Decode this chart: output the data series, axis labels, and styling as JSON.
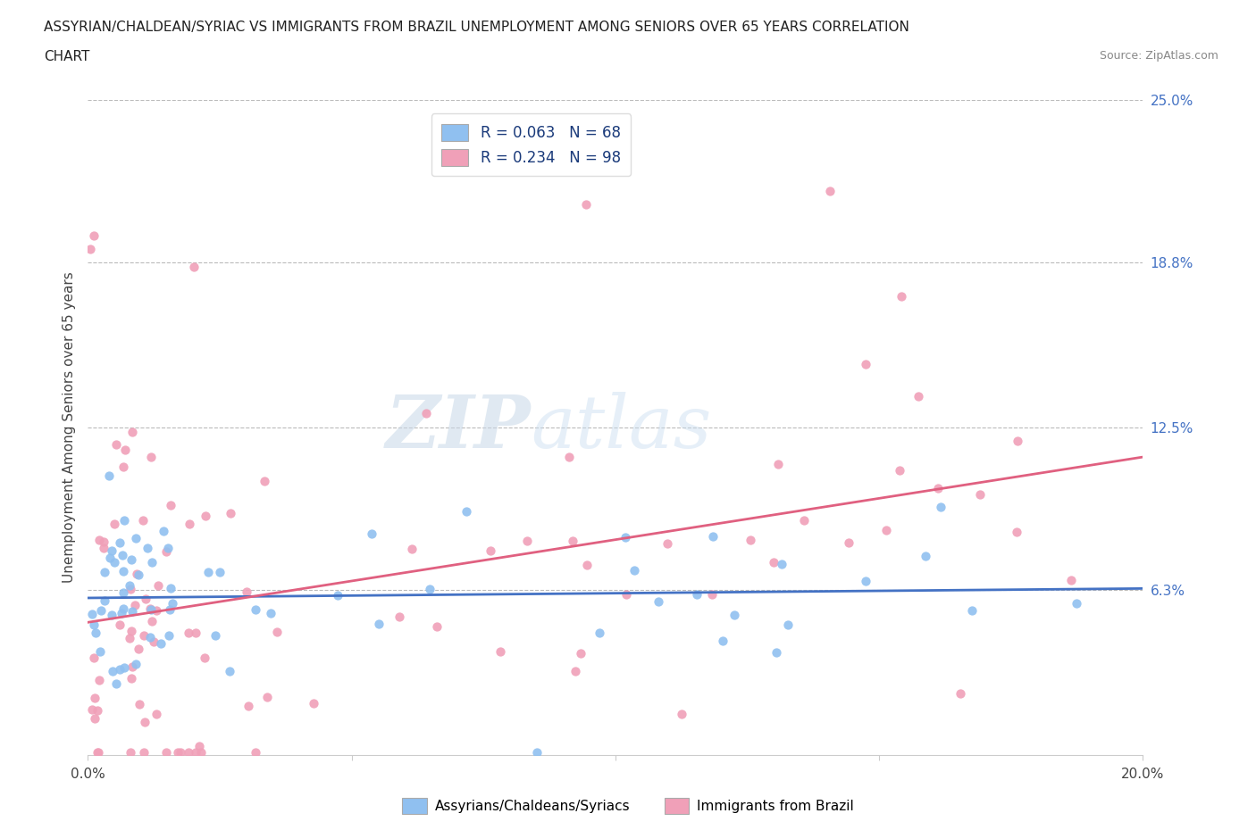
{
  "title_line1": "ASSYRIAN/CHALDEAN/SYRIAC VS IMMIGRANTS FROM BRAZIL UNEMPLOYMENT AMONG SENIORS OVER 65 YEARS CORRELATION",
  "title_line2": "CHART",
  "source_text": "Source: ZipAtlas.com",
  "ylabel": "Unemployment Among Seniors over 65 years",
  "xlim": [
    0.0,
    0.2
  ],
  "ylim": [
    0.0,
    0.25
  ],
  "y_tick_labels_right": [
    "25.0%",
    "18.8%",
    "12.5%",
    "6.3%",
    ""
  ],
  "y_ticks_right": [
    0.25,
    0.188,
    0.125,
    0.063,
    0.0
  ],
  "hgrid_values": [
    0.25,
    0.188,
    0.125,
    0.063
  ],
  "series1_color": "#90c0f0",
  "series2_color": "#f0a0b8",
  "line1_color": "#4472c4",
  "line2_color": "#e06080",
  "line1_intercept": 0.058,
  "line1_slope": 0.025,
  "line2_intercept": 0.045,
  "line2_slope": 0.38,
  "seed": 123
}
